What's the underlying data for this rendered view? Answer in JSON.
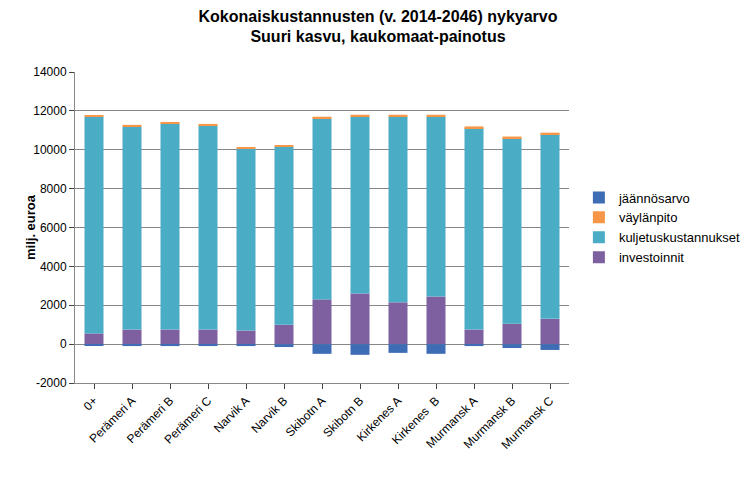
{
  "chart_data": {
    "type": "bar",
    "title": "Kokonaiskustannusten (v. 2014-2046) nykyarvo",
    "subtitle": "Suuri kasvu, kaukomaat-painotus",
    "ylabel": "milj. euroa",
    "categories": [
      "0+",
      "Perämeri A",
      "Perämeri B",
      "Perämeri C",
      "Narvik A",
      "Narvik B",
      "Skibotn A",
      "Skibotn B",
      "Kirkenes A",
      "Kirkenes  B",
      "Murmansk A",
      "Murmansk B",
      "Murmansk C"
    ],
    "series": [
      {
        "name": "investoinnit",
        "color": "#7e60a0",
        "values": [
          550,
          750,
          750,
          750,
          700,
          1000,
          2300,
          2600,
          2150,
          2450,
          750,
          1050,
          1300
        ]
      },
      {
        "name": "kuljetuskustannukset",
        "color": "#4bacc6",
        "values": [
          11150,
          10450,
          10600,
          10500,
          9350,
          9150,
          9300,
          9100,
          9550,
          9250,
          10350,
          9550,
          9500
        ]
      },
      {
        "name": "väylänpito",
        "color": "#f79646",
        "values": [
          80,
          80,
          80,
          80,
          80,
          80,
          100,
          100,
          100,
          100,
          100,
          80,
          80
        ]
      },
      {
        "name": "jäännösarvo",
        "color": "#3f6db5",
        "values": [
          -80,
          -100,
          -100,
          -100,
          -100,
          -150,
          -500,
          -550,
          -450,
          -500,
          -100,
          -200,
          -300
        ]
      }
    ],
    "stacked": true,
    "ylim": [
      -2000,
      14000
    ],
    "yticks": [
      -2000,
      0,
      2000,
      4000,
      6000,
      8000,
      10000,
      12000,
      14000
    ],
    "grid": true,
    "legend": "right"
  }
}
